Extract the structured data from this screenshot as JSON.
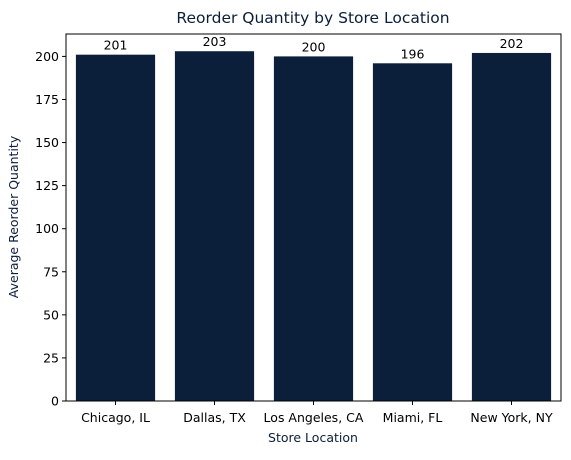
{
  "colors": {
    "bar": "#0b1f3a",
    "title": "#0b1f3a",
    "axis_label": "#0b1f3a",
    "axis": "#000000"
  },
  "chart_data": {
    "type": "bar",
    "title": "Reorder Quantity by Store Location",
    "xlabel": "Store Location",
    "ylabel": "Average Reorder Quantity",
    "categories": [
      "Chicago, IL",
      "Dallas, TX",
      "Los Angeles, CA",
      "Miami, FL",
      "New York, NY"
    ],
    "values": [
      201,
      203,
      200,
      196,
      202
    ],
    "data_labels": [
      "201",
      "203",
      "200",
      "196",
      "202"
    ],
    "ylim": [
      0,
      213
    ],
    "yticks": [
      0,
      25,
      50,
      75,
      100,
      125,
      150,
      175,
      200
    ],
    "grid": false,
    "legend": "none"
  }
}
